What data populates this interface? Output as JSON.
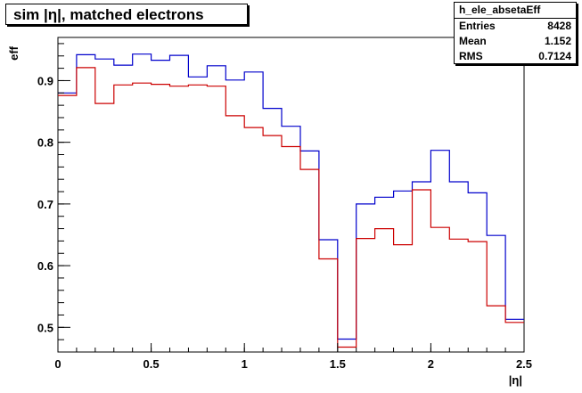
{
  "chart_data": {
    "type": "line",
    "title": "sim |η|, matched electrons",
    "xlabel": "|η|",
    "ylabel": "eff",
    "xlim": [
      0,
      2.5
    ],
    "ylim": [
      0.46,
      0.97
    ],
    "xticks": [
      0,
      0.5,
      1,
      1.5,
      2,
      2.5
    ],
    "xtick_labels": [
      "0",
      "0.5",
      "1",
      "1.5",
      "2",
      "2.5"
    ],
    "yticks": [
      0.5,
      0.6,
      0.7,
      0.8,
      0.9
    ],
    "ytick_labels": [
      "0.5",
      "0.6",
      "0.7",
      "0.8",
      "0.9"
    ],
    "bin_edges": [
      0,
      0.1,
      0.2,
      0.3,
      0.4,
      0.5,
      0.6,
      0.7,
      0.8,
      0.9,
      1.0,
      1.1,
      1.2,
      1.3,
      1.4,
      1.5,
      1.6,
      1.7,
      1.8,
      1.9,
      2.0,
      2.1,
      2.2,
      2.3,
      2.4,
      2.5
    ],
    "series": [
      {
        "color": "#0000cc",
        "values": [
          0.88,
          0.942,
          0.935,
          0.925,
          0.943,
          0.933,
          0.941,
          0.906,
          0.924,
          0.901,
          0.914,
          0.855,
          0.826,
          0.786,
          0.642,
          0.481,
          0.7,
          0.711,
          0.721,
          0.736,
          0.787,
          0.736,
          0.718,
          0.649,
          0.513
        ]
      },
      {
        "color": "#cc0000",
        "values": [
          0.876,
          0.921,
          0.863,
          0.893,
          0.896,
          0.894,
          0.891,
          0.893,
          0.891,
          0.843,
          0.824,
          0.811,
          0.793,
          0.756,
          0.611,
          0.468,
          0.644,
          0.66,
          0.634,
          0.723,
          0.662,
          0.643,
          0.639,
          0.535,
          0.508
        ]
      }
    ]
  },
  "stats": {
    "name": "h_ele_absetaEff",
    "entries_label": "Entries",
    "entries": "8428",
    "mean_label": "Mean",
    "mean": "1.152",
    "rms_label": "RMS",
    "rms": "0.7124"
  }
}
